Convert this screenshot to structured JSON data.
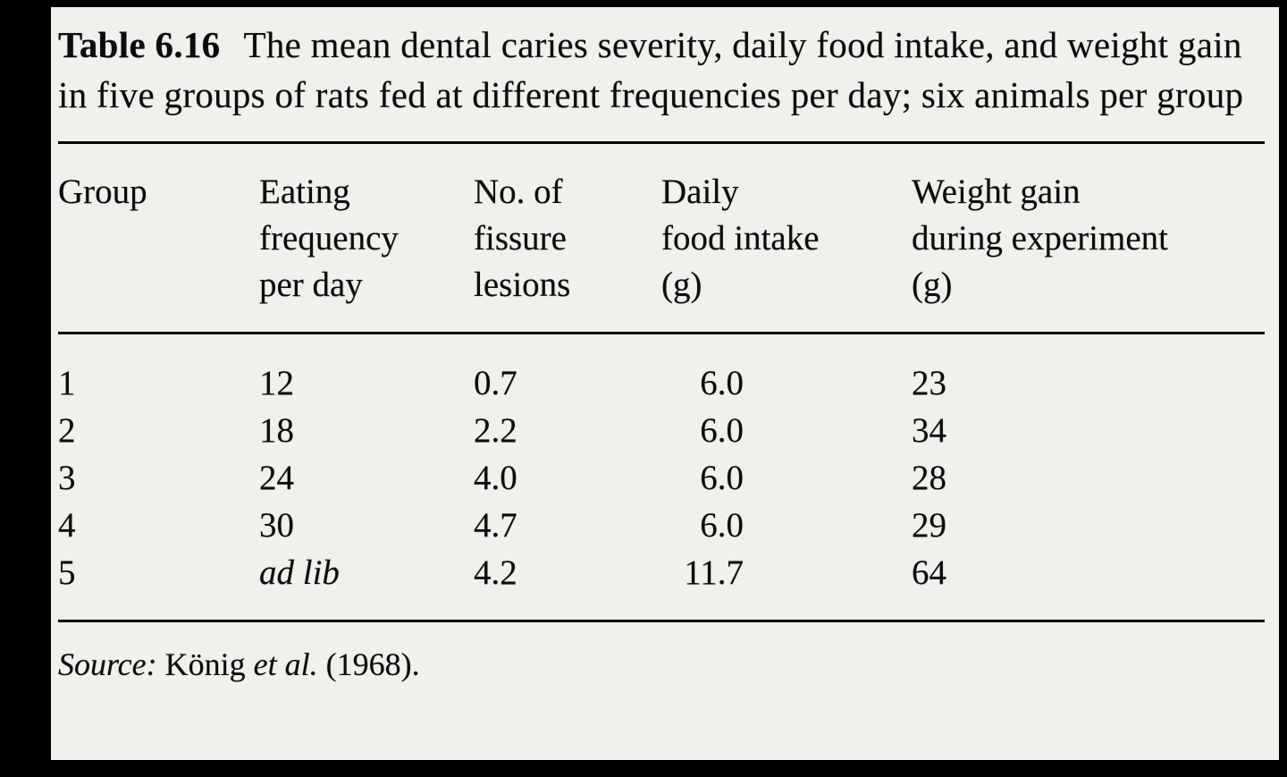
{
  "document": {
    "caption": {
      "label": "Table 6.16",
      "text": "The mean dental caries severity, daily food intake, and weight gain in five groups of rats fed at different frequencies per day; six animals per group"
    },
    "table": {
      "headers": [
        "Group",
        "Eating\nfrequency\nper day",
        "No. of\nfissure\nlesions",
        "Daily\nfood intake\n(g)",
        "Weight gain\nduring experiment\n(g)"
      ],
      "rows": [
        {
          "group": "1",
          "eating_frequency": "12",
          "fissure_lesions": "0.7",
          "food_intake": "6.0",
          "weight_gain": "23"
        },
        {
          "group": "2",
          "eating_frequency": "18",
          "fissure_lesions": "2.2",
          "food_intake": "6.0",
          "weight_gain": "34"
        },
        {
          "group": "3",
          "eating_frequency": "24",
          "fissure_lesions": "4.0",
          "food_intake": "6.0",
          "weight_gain": "28"
        },
        {
          "group": "4",
          "eating_frequency": "30",
          "fissure_lesions": "4.7",
          "food_intake": "6.0",
          "weight_gain": "29"
        },
        {
          "group": "5",
          "eating_frequency": "ad lib",
          "fissure_lesions": "4.2",
          "food_intake": "11.7",
          "weight_gain": "64"
        }
      ]
    },
    "source": {
      "prefix": "Source:",
      "author": "König",
      "etal": "et al.",
      "year": "(1968)."
    },
    "colors": {
      "paper": "#f0f0ed",
      "ink": "#0c0c0c",
      "frame": "#000000"
    }
  }
}
